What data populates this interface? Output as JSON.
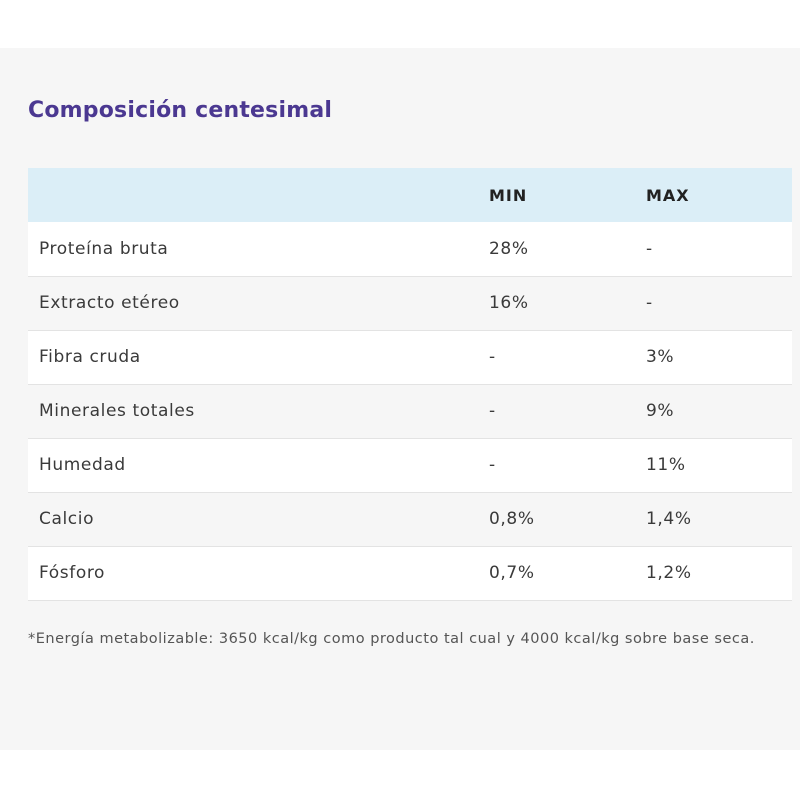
{
  "section": {
    "title": "Composición centesimal"
  },
  "table": {
    "headers": [
      "",
      "MIN",
      "MAX"
    ],
    "rows": [
      {
        "name": "Proteína bruta",
        "min": "28%",
        "max": "-"
      },
      {
        "name": "Extracto etéreo",
        "min": "16%",
        "max": "-"
      },
      {
        "name": "Fibra cruda",
        "min": "-",
        "max": "3%"
      },
      {
        "name": "Minerales totales",
        "min": "-",
        "max": "9%"
      },
      {
        "name": "Humedad",
        "min": "-",
        "max": "11%"
      },
      {
        "name": "Calcio",
        "min": "0,8%",
        "max": "1,4%"
      },
      {
        "name": "Fósforo",
        "min": "0,7%",
        "max": "1,2%"
      }
    ]
  },
  "footnote": "*Energía metabolizable: 3650 kcal/kg como producto tal cual y 4000 kcal/kg sobre base seca.",
  "colors": {
    "title": "#4b3891",
    "header_bg": "#dbeef7",
    "panel_bg": "#f6f6f6"
  }
}
